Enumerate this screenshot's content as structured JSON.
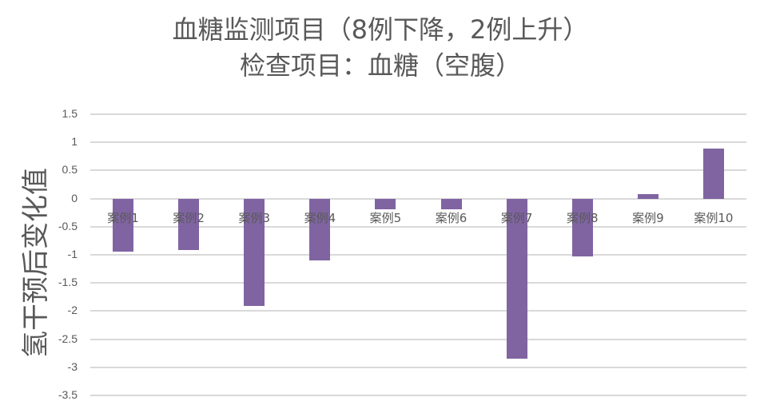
{
  "chart_data": {
    "type": "bar",
    "title": "血糖监测项目（8例下降，2例上升）",
    "subtitle": "检查项目：血糖（空腹）",
    "xlabel": "",
    "ylabel": "氢干预后变化值",
    "categories": [
      "案例1",
      "案例2",
      "案例3",
      "案例4",
      "案例5",
      "案例6",
      "案例7",
      "案例8",
      "案例9",
      "案例10"
    ],
    "values": [
      -0.95,
      -0.91,
      -1.91,
      -1.1,
      -0.19,
      -0.19,
      -2.85,
      -1.03,
      0.08,
      0.89
    ],
    "ylim": [
      -3.5,
      1.5
    ],
    "yticks": [
      "1.5",
      "1",
      "0.5",
      "0",
      "-0.5",
      "-1",
      "-1.5",
      "-2",
      "-2.5",
      "-3",
      "-3.5"
    ],
    "grid": true,
    "legend": null,
    "bar_color": "#8064a2"
  },
  "title": {
    "line1": "血糖监测项目（8例下降，2例上升）",
    "line2": "检查项目：血糖（空腹）"
  },
  "axis": {
    "ylabel": "氢干预后变化值"
  }
}
